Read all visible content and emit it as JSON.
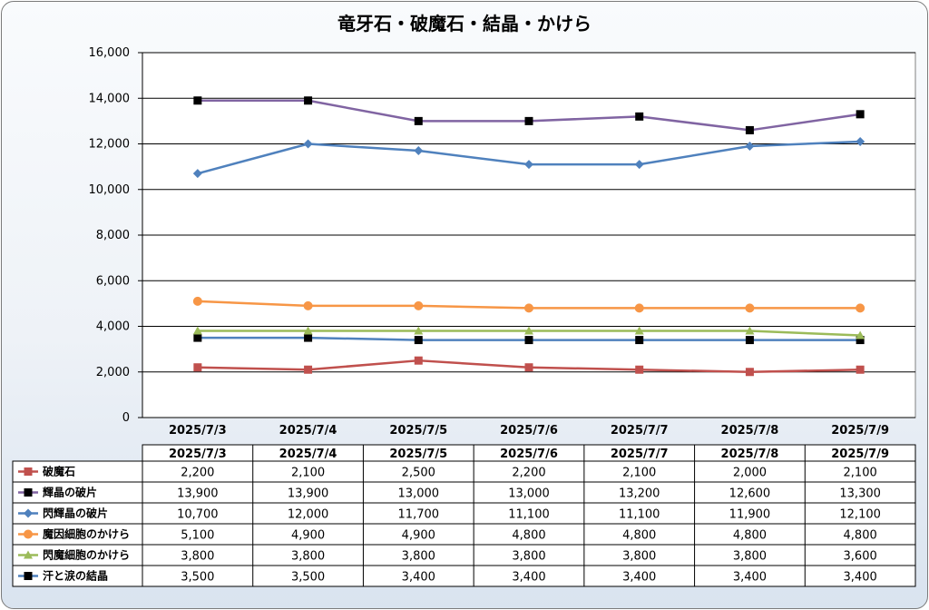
{
  "chart_data": {
    "type": "line",
    "title": "竜牙石・破魔石・結晶・かけら",
    "categories": [
      "2025/7/3",
      "2025/7/4",
      "2025/7/5",
      "2025/7/6",
      "2025/7/7",
      "2025/7/8",
      "2025/7/9"
    ],
    "ylim": [
      0,
      16000
    ],
    "yticks": [
      "0",
      "2,000",
      "4,000",
      "6,000",
      "8,000",
      "10,000",
      "12,000",
      "14,000",
      "16,000"
    ],
    "ytick_values": [
      0,
      2000,
      4000,
      6000,
      8000,
      10000,
      12000,
      14000,
      16000
    ],
    "grid": true,
    "legend": "data-table",
    "series": [
      {
        "name": "破魔石",
        "color": "#c0504d",
        "marker": "square",
        "values": [
          2200,
          2100,
          2500,
          2200,
          2100,
          2000,
          2100
        ],
        "labels": [
          "2,200",
          "2,100",
          "2,500",
          "2,200",
          "2,100",
          "2,000",
          "2,100"
        ]
      },
      {
        "name": "輝晶の破片",
        "color": "#8064a2",
        "marker": "square-black",
        "values": [
          13900,
          13900,
          13000,
          13000,
          13200,
          12600,
          13300
        ],
        "labels": [
          "13,900",
          "13,900",
          "13,000",
          "13,000",
          "13,200",
          "12,600",
          "13,300"
        ]
      },
      {
        "name": "閃輝晶の破片",
        "color": "#4f81bd",
        "marker": "diamond",
        "values": [
          10700,
          12000,
          11700,
          11100,
          11100,
          11900,
          12100
        ],
        "labels": [
          "10,700",
          "12,000",
          "11,700",
          "11,100",
          "11,100",
          "11,900",
          "12,100"
        ]
      },
      {
        "name": "魔因細胞のかけら",
        "color": "#f79646",
        "marker": "circle",
        "values": [
          5100,
          4900,
          4900,
          4800,
          4800,
          4800,
          4800
        ],
        "labels": [
          "5,100",
          "4,900",
          "4,900",
          "4,800",
          "4,800",
          "4,800",
          "4,800"
        ]
      },
      {
        "name": "閃魔細胞のかけら",
        "color": "#9bbb59",
        "marker": "triangle",
        "values": [
          3800,
          3800,
          3800,
          3800,
          3800,
          3800,
          3600
        ],
        "labels": [
          "3,800",
          "3,800",
          "3,800",
          "3,800",
          "3,800",
          "3,800",
          "3,600"
        ]
      },
      {
        "name": "汗と涙の結晶",
        "color": "#4f81bd",
        "marker": "square-black",
        "values": [
          3500,
          3500,
          3400,
          3400,
          3400,
          3400,
          3400
        ],
        "labels": [
          "3,500",
          "3,500",
          "3,400",
          "3,400",
          "3,400",
          "3,400",
          "3,400"
        ]
      }
    ]
  }
}
